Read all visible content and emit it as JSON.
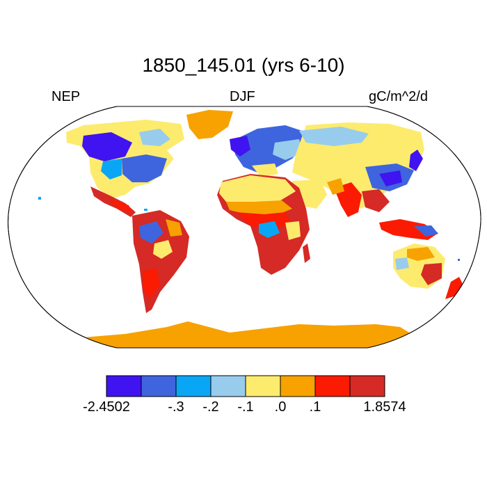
{
  "title": "1850_145.01 (yrs 6-10)",
  "left_label": "NEP",
  "center_label": "DJF",
  "right_label": "gC/m^2/d",
  "colors": {
    "c1": "#3f14f0",
    "c2": "#3e65de",
    "c3": "#0aa6f6",
    "c4": "#98cced",
    "c5": "#fdeb6e",
    "c6": "#f7a200",
    "c7": "#fb1a02",
    "c8": "#d52a25",
    "ocean": "#ffffff",
    "coast": "#000000"
  },
  "colorbar": {
    "colors": [
      "#3f14f0",
      "#3e65de",
      "#0aa6f6",
      "#98cced",
      "#fdeb6e",
      "#f7a200",
      "#fb1a02",
      "#d52a25"
    ],
    "labels": [
      "-2.4502",
      "-.3",
      "-.2",
      "-.1",
      ".0",
      ".1",
      "1.8574"
    ]
  }
}
